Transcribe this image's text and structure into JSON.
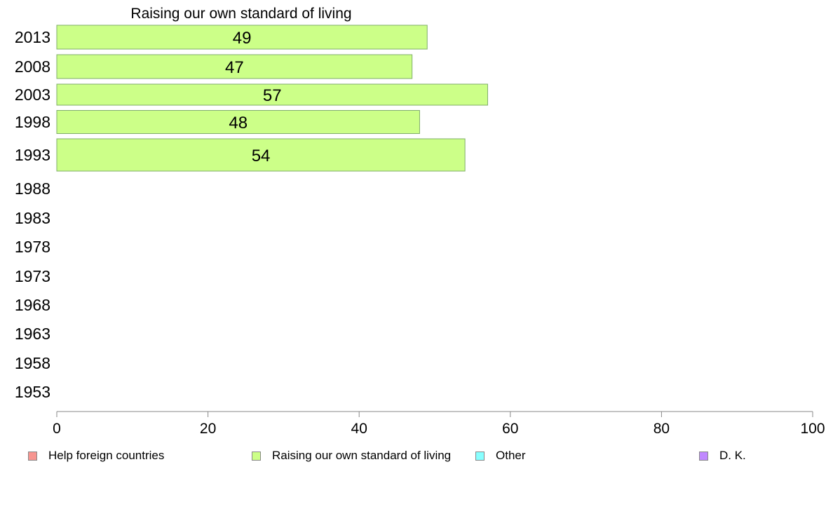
{
  "chart_data": {
    "type": "bar",
    "orientation": "horizontal",
    "title": "Raising our own standard of living",
    "categories": [
      "2013",
      "2008",
      "2003",
      "1998",
      "1993",
      "1988",
      "1983",
      "1978",
      "1973",
      "1968",
      "1963",
      "1958",
      "1953"
    ],
    "series": [
      {
        "name": "Raising our own standard of living",
        "color": "#ccff88",
        "values": [
          49,
          47,
          57,
          48,
          54,
          null,
          null,
          null,
          null,
          null,
          null,
          null,
          null
        ],
        "labels": [
          "49",
          "47",
          "57",
          "48",
          "54",
          "",
          "",
          "",
          "",
          "",
          "",
          "",
          ""
        ]
      }
    ],
    "xlim": [
      0,
      100
    ],
    "xticks": [
      "0",
      "20",
      "40",
      "60",
      "80",
      "100"
    ],
    "grid": false,
    "legend": {
      "placement": "bottom",
      "items": [
        {
          "label": "Help foreign countries",
          "color": "#f79590"
        },
        {
          "label": "Raising our own standard of living",
          "color": "#ccff88"
        },
        {
          "label": "Other",
          "color": "#88ffff"
        },
        {
          "label": "D. K.",
          "color": "#c088ff"
        }
      ]
    }
  }
}
